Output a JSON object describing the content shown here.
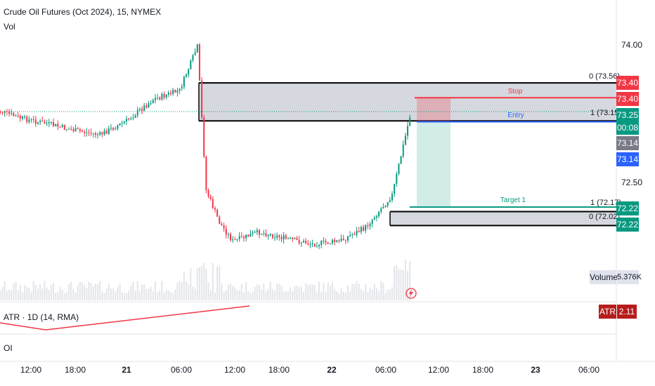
{
  "header": {
    "title": "Crude Oil Futures (Oct 2024), 15, NYMEX",
    "sub": "Vol"
  },
  "price_axis": {
    "ticks": [
      "74.00",
      "72.50"
    ]
  },
  "time_axis": {
    "ticks": [
      "12:00",
      "18:00",
      "21",
      "06:00",
      "12:00",
      "18:00",
      "22",
      "06:00",
      "12:00",
      "18:00",
      "23",
      "06:00"
    ]
  },
  "fib_levels": [
    {
      "label": "0 (73.56)"
    },
    {
      "label": "1 (73.15)"
    },
    {
      "label": "1 (72.17)"
    },
    {
      "label": "0 (72.02)"
    }
  ],
  "position": {
    "stop_label": "Stop",
    "entry_label": "Entry",
    "target_label": "Target 1"
  },
  "price_tags": [
    {
      "text": "73.40",
      "color": "#f23645"
    },
    {
      "text": "73.40",
      "color": "#f23645"
    },
    {
      "text": "73.25",
      "color": "#089981"
    },
    {
      "text": "00:08",
      "color": "#089981"
    },
    {
      "text": "73.14",
      "color": "#787b86"
    },
    {
      "text": "73.14",
      "color": "#2962ff"
    },
    {
      "text": "72.22",
      "color": "#089981"
    },
    {
      "text": "72.22",
      "color": "#089981"
    }
  ],
  "volume_panel": {
    "label": "Volume",
    "value": "5.376K"
  },
  "atr_panel": {
    "label": "ATR · 1D (14, RMA)",
    "tag_label": "ATR",
    "tag_value": "2.11"
  },
  "oi_panel": {
    "label": "OI"
  },
  "colors": {
    "up": "#089981",
    "down": "#f23645",
    "atr_line": "#f23645",
    "stop": "#f23645",
    "entry": "#2962ff",
    "target": "#089981"
  },
  "chart_data": {
    "type": "candlestick",
    "price_ylim": [
      71.75,
      74.2
    ],
    "x_ticks": [
      "12:00",
      "18:00",
      "21",
      "06:00",
      "12:00",
      "18:00",
      "22",
      "06:00",
      "12:00",
      "18:00",
      "23",
      "06:00"
    ],
    "approx_close_path": [
      {
        "t": "20 09:00",
        "price": 73.28
      },
      {
        "t": "20 12:00",
        "price": 73.18
      },
      {
        "t": "20 15:00",
        "price": 73.12
      },
      {
        "t": "20 18:00",
        "price": 73.05
      },
      {
        "t": "20 21:00",
        "price": 73.0
      },
      {
        "t": "21 00:00",
        "price": 73.15
      },
      {
        "t": "21 03:00",
        "price": 73.38
      },
      {
        "t": "21 06:00",
        "price": 73.48
      },
      {
        "t": "21 08:00",
        "price": 73.95
      },
      {
        "t": "21 09:00",
        "price": 72.4
      },
      {
        "t": "21 10:30",
        "price": 72.05
      },
      {
        "t": "21 12:00",
        "price": 71.85
      },
      {
        "t": "21 15:00",
        "price": 71.95
      },
      {
        "t": "21 18:00",
        "price": 71.88
      },
      {
        "t": "21 21:00",
        "price": 71.82
      },
      {
        "t": "22 00:00",
        "price": 71.85
      },
      {
        "t": "22 03:00",
        "price": 72.0
      },
      {
        "t": "22 06:00",
        "price": 72.35
      },
      {
        "t": "22 08:00",
        "price": 73.2
      }
    ],
    "fib_levels": [
      {
        "label": "0",
        "value": 73.56
      },
      {
        "label": "1",
        "value": 73.15
      },
      {
        "label": "1",
        "value": 72.17
      },
      {
        "label": "0",
        "value": 72.02
      }
    ],
    "position": {
      "stop": 73.4,
      "entry": 73.14,
      "target": 72.22
    },
    "last_price": 73.25,
    "volume_last": "5.376K",
    "atr": 2.11
  }
}
